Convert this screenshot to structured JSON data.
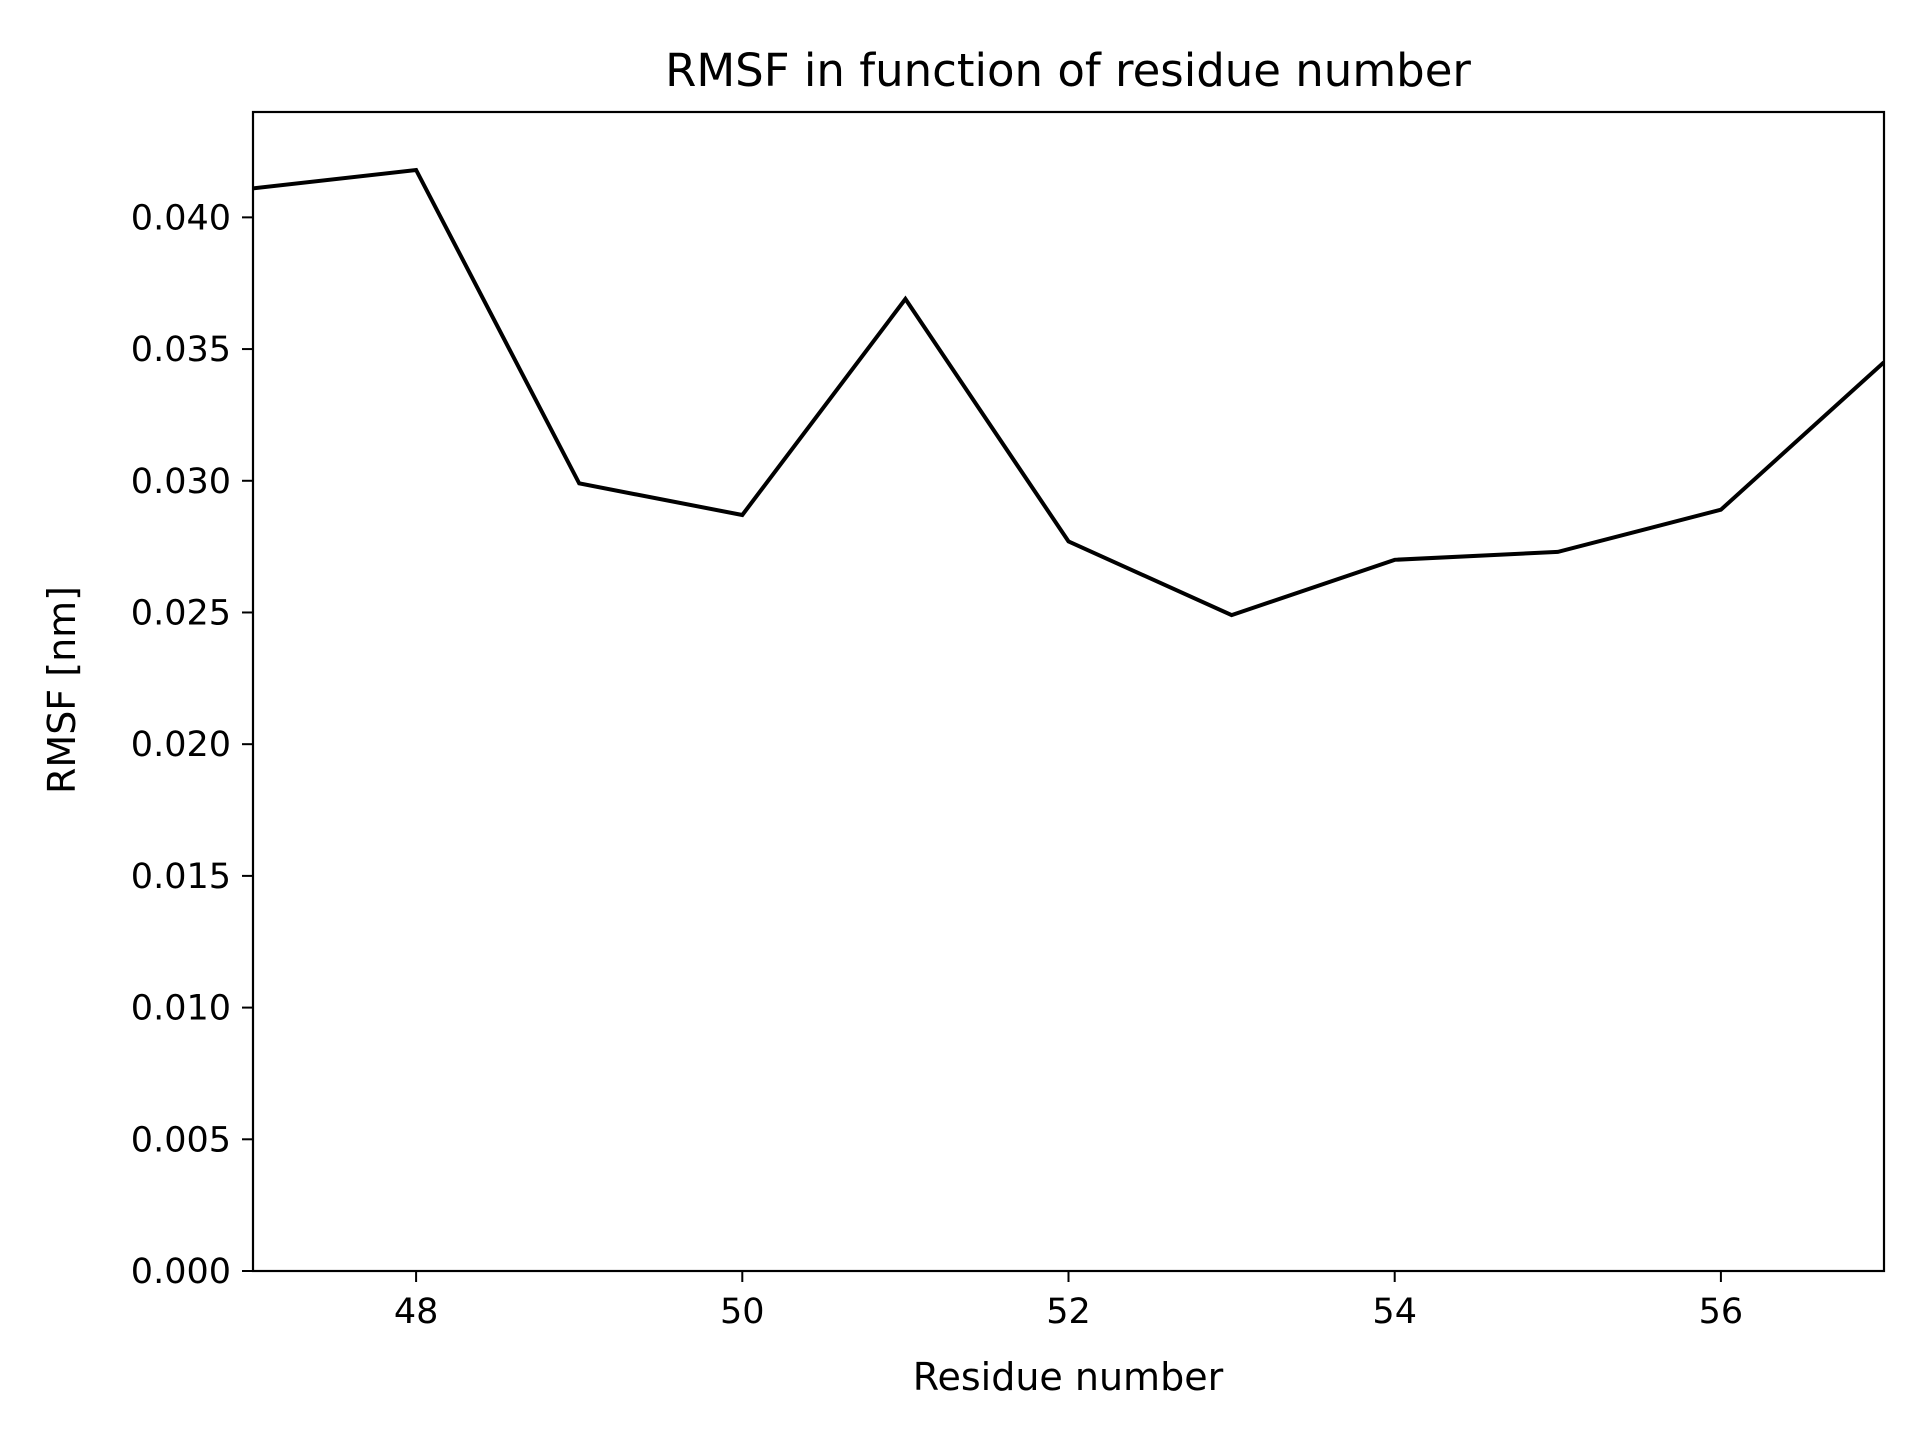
{
  "chart_data": {
    "type": "line",
    "title": "RMSF in function of residue number",
    "xlabel": "Residue number",
    "ylabel": "RMSF [nm]",
    "xlim": [
      47,
      57
    ],
    "ylim": [
      0.0,
      0.044
    ],
    "xticks": [
      48,
      50,
      52,
      54,
      56
    ],
    "xtick_labels": [
      "48",
      "50",
      "52",
      "54",
      "56"
    ],
    "yticks": [
      0.0,
      0.005,
      0.01,
      0.015,
      0.02,
      0.025,
      0.03,
      0.035,
      0.04
    ],
    "ytick_labels": [
      "0.000",
      "0.005",
      "0.010",
      "0.015",
      "0.020",
      "0.025",
      "0.030",
      "0.035",
      "0.040"
    ],
    "grid": false,
    "line_color": "#000000",
    "series": [
      {
        "x": [
          47,
          48,
          49,
          50,
          51,
          52,
          53,
          54,
          55,
          56,
          57
        ],
        "y": [
          0.0411,
          0.0418,
          0.0299,
          0.0287,
          0.0369,
          0.0277,
          0.0249,
          0.027,
          0.0273,
          0.0289,
          0.0345
        ]
      }
    ]
  }
}
